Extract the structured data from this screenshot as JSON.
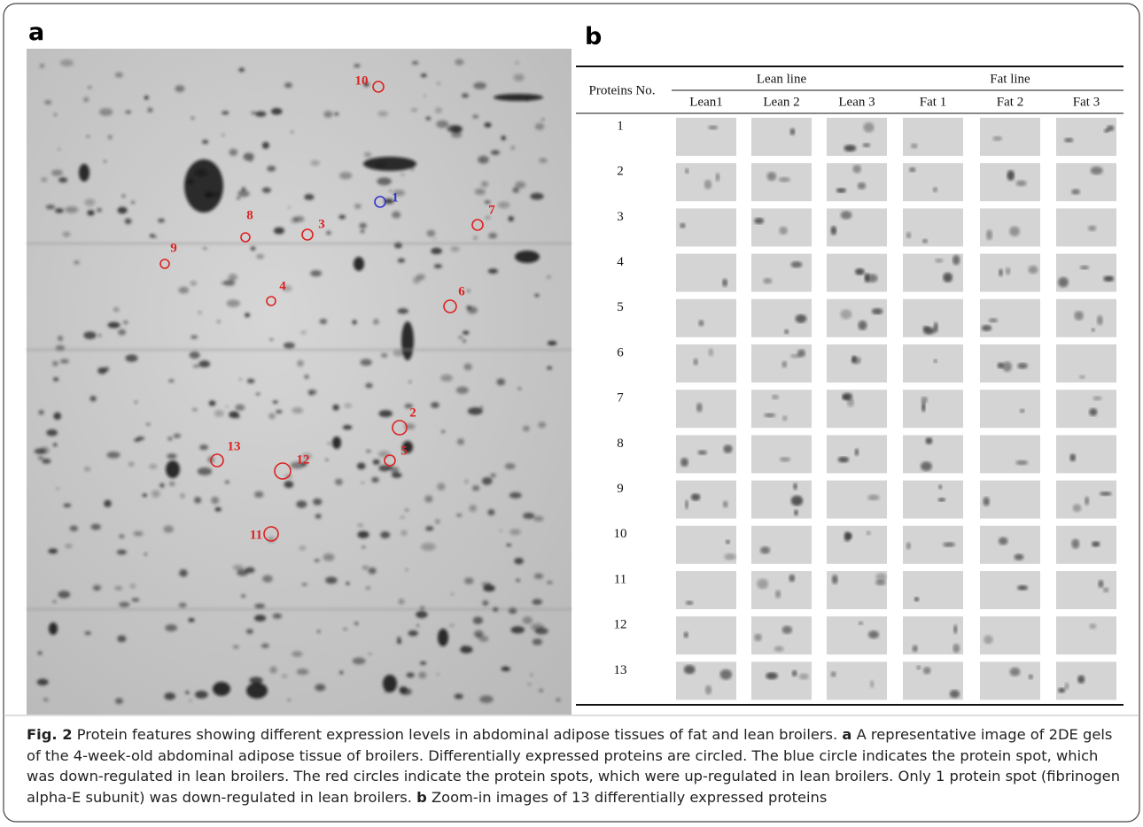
{
  "panel_a": {
    "label": "a",
    "spots": [
      "10",
      "1",
      "8",
      "3",
      "7",
      "9",
      "4",
      "6",
      "2",
      "13",
      "12",
      "5",
      "11"
    ]
  },
  "panel_b": {
    "label": "b",
    "table": {
      "row_header": "Proteins No.",
      "groups": [
        "Lean line",
        "Fat line"
      ],
      "columns": [
        "Lean1",
        "Lean 2",
        "Lean 3",
        "Fat 1",
        "Fat 2",
        "Fat 3"
      ],
      "rows": [
        "1",
        "2",
        "3",
        "4",
        "5",
        "6",
        "7",
        "8",
        "9",
        "10",
        "11",
        "12",
        "13"
      ]
    }
  },
  "caption": {
    "figure_label": "Fig. 2",
    "intro": "Protein features showing different expression levels in abdominal adipose tissues of fat and lean broilers.",
    "part_a_label": "a",
    "part_a_text": "A representative image of 2DE gels of the 4-week-old abdominal adipose tissue of broilers. Differentially expressed proteins are circled. The blue circle indicates the protein spot, which was down-regulated in lean broilers. The red circles indicate the protein spots, which were up-regulated in lean broilers. Only 1 protein spot (fibrinogen alpha-E subunit) was down-regulated in lean broilers.",
    "part_b_label": "b",
    "part_b_text": "Zoom-in images of 13 differentially expressed proteins"
  }
}
